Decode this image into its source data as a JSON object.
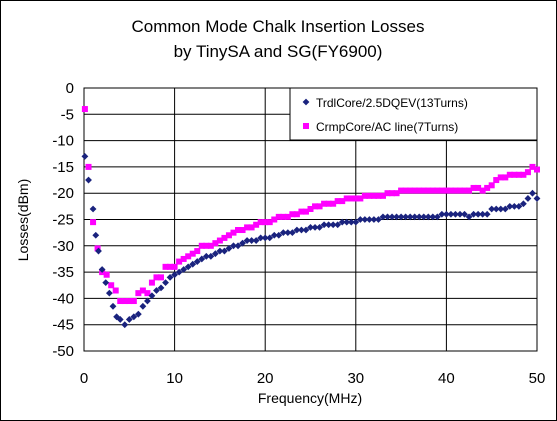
{
  "chart_data": {
    "type": "scatter",
    "title": [
      "Common Mode Chalk Insertion Losses",
      "by TinySA and SG(FY6900)"
    ],
    "xlabel": "Frequency(MHz)",
    "ylabel": "Losses(dBm)",
    "xlim": [
      0,
      50
    ],
    "ylim": [
      -50,
      0
    ],
    "xticks": [
      0,
      10,
      20,
      30,
      40,
      50
    ],
    "yticks": [
      0,
      -5,
      -10,
      -15,
      -20,
      -25,
      -30,
      -35,
      -40,
      -45,
      -50
    ],
    "grid": true,
    "legend_position": "top-right",
    "series": [
      {
        "name": "TrdlCore/2.5DQEV(13Turns)",
        "color": "#1a237e",
        "marker": "diamond",
        "points": [
          [
            0.1,
            -13
          ],
          [
            0.5,
            -17.5
          ],
          [
            1.0,
            -23
          ],
          [
            1.3,
            -28
          ],
          [
            1.6,
            -31
          ],
          [
            2.0,
            -34.5
          ],
          [
            2.4,
            -37
          ],
          [
            2.8,
            -39
          ],
          [
            3.2,
            -41.5
          ],
          [
            3.6,
            -43.5
          ],
          [
            4.0,
            -44
          ],
          [
            4.5,
            -45
          ],
          [
            5.0,
            -44
          ],
          [
            5.5,
            -43.5
          ],
          [
            6.0,
            -43
          ],
          [
            6.5,
            -41.5
          ],
          [
            7.0,
            -40.5
          ],
          [
            7.5,
            -39.5
          ],
          [
            8.0,
            -38.5
          ],
          [
            8.5,
            -38
          ],
          [
            9.0,
            -37
          ],
          [
            9.5,
            -36
          ],
          [
            10.0,
            -35.5
          ],
          [
            10.5,
            -35
          ],
          [
            11.0,
            -34.5
          ],
          [
            11.5,
            -34
          ],
          [
            12.0,
            -33.5
          ],
          [
            12.5,
            -33
          ],
          [
            13.0,
            -32.5
          ],
          [
            13.5,
            -32
          ],
          [
            14.0,
            -32
          ],
          [
            14.5,
            -31.5
          ],
          [
            15.0,
            -31
          ],
          [
            15.5,
            -31
          ],
          [
            16.0,
            -30.5
          ],
          [
            16.5,
            -30
          ],
          [
            17.0,
            -30
          ],
          [
            17.5,
            -29.5
          ],
          [
            18.0,
            -29
          ],
          [
            18.5,
            -29
          ],
          [
            19.0,
            -29
          ],
          [
            19.5,
            -28.5
          ],
          [
            20.0,
            -28.5
          ],
          [
            20.5,
            -28.5
          ],
          [
            21.0,
            -28
          ],
          [
            21.5,
            -28
          ],
          [
            22.0,
            -27.5
          ],
          [
            22.5,
            -27.5
          ],
          [
            23.0,
            -27.5
          ],
          [
            23.5,
            -27
          ],
          [
            24.0,
            -27
          ],
          [
            24.5,
            -27
          ],
          [
            25.0,
            -26.5
          ],
          [
            25.5,
            -26.5
          ],
          [
            26.0,
            -26.5
          ],
          [
            26.5,
            -26
          ],
          [
            27.0,
            -26
          ],
          [
            27.5,
            -26
          ],
          [
            28.0,
            -26
          ],
          [
            28.5,
            -25.5
          ],
          [
            29.0,
            -25.5
          ],
          [
            29.5,
            -25.5
          ],
          [
            30.0,
            -25.5
          ],
          [
            30.5,
            -25
          ],
          [
            31.0,
            -25
          ],
          [
            31.5,
            -25
          ],
          [
            32.0,
            -25
          ],
          [
            32.5,
            -25
          ],
          [
            33.0,
            -24.5
          ],
          [
            33.5,
            -24.5
          ],
          [
            34.0,
            -24.5
          ],
          [
            34.5,
            -24.5
          ],
          [
            35.0,
            -24.5
          ],
          [
            35.5,
            -24.5
          ],
          [
            36.0,
            -24.5
          ],
          [
            36.5,
            -24.5
          ],
          [
            37.0,
            -24.5
          ],
          [
            37.5,
            -24.5
          ],
          [
            38.0,
            -24.5
          ],
          [
            38.5,
            -24.5
          ],
          [
            39.0,
            -24.5
          ],
          [
            39.5,
            -24
          ],
          [
            40.0,
            -24
          ],
          [
            40.5,
            -24
          ],
          [
            41.0,
            -24
          ],
          [
            41.5,
            -24
          ],
          [
            42.0,
            -24
          ],
          [
            42.5,
            -24.5
          ],
          [
            43.0,
            -24
          ],
          [
            43.5,
            -24
          ],
          [
            44.0,
            -24
          ],
          [
            44.5,
            -24
          ],
          [
            45.0,
            -23
          ],
          [
            45.5,
            -23
          ],
          [
            46.0,
            -23
          ],
          [
            46.5,
            -23
          ],
          [
            47.0,
            -22.5
          ],
          [
            47.5,
            -22.5
          ],
          [
            48.0,
            -22.5
          ],
          [
            48.5,
            -22
          ],
          [
            49.0,
            -21
          ],
          [
            49.5,
            -20
          ],
          [
            50.0,
            -21
          ]
        ]
      },
      {
        "name": "CrmpCore/AC line(7Turns)",
        "color": "#ff00ff",
        "marker": "square",
        "points": [
          [
            0.1,
            -4
          ],
          [
            0.5,
            -15
          ],
          [
            1.0,
            -25.5
          ],
          [
            1.5,
            -30.5
          ],
          [
            2.0,
            -35
          ],
          [
            2.5,
            -35.5
          ],
          [
            3.0,
            -37.5
          ],
          [
            3.5,
            -38.5
          ],
          [
            4.0,
            -40.5
          ],
          [
            4.5,
            -40.5
          ],
          [
            5.0,
            -40.5
          ],
          [
            5.5,
            -40.5
          ],
          [
            6.0,
            -39
          ],
          [
            6.5,
            -38.5
          ],
          [
            7.0,
            -39
          ],
          [
            7.5,
            -37
          ],
          [
            8.0,
            -36
          ],
          [
            8.5,
            -36
          ],
          [
            9.0,
            -34
          ],
          [
            9.5,
            -34
          ],
          [
            10.0,
            -34
          ],
          [
            10.5,
            -33
          ],
          [
            11.0,
            -32.5
          ],
          [
            11.5,
            -32
          ],
          [
            12.0,
            -31.5
          ],
          [
            12.5,
            -31
          ],
          [
            13.0,
            -30
          ],
          [
            13.5,
            -30
          ],
          [
            14.0,
            -30
          ],
          [
            14.5,
            -29.5
          ],
          [
            15.0,
            -29
          ],
          [
            15.5,
            -28.5
          ],
          [
            16.0,
            -28
          ],
          [
            16.5,
            -27.5
          ],
          [
            17.0,
            -27
          ],
          [
            17.5,
            -27
          ],
          [
            18.0,
            -26.5
          ],
          [
            18.5,
            -26.5
          ],
          [
            19.0,
            -26
          ],
          [
            19.5,
            -25.5
          ],
          [
            20.0,
            -25.5
          ],
          [
            20.5,
            -25.5
          ],
          [
            21.0,
            -25
          ],
          [
            21.5,
            -24.5
          ],
          [
            22.0,
            -24.5
          ],
          [
            22.5,
            -24.5
          ],
          [
            23.0,
            -24
          ],
          [
            23.5,
            -24
          ],
          [
            24.0,
            -23.5
          ],
          [
            24.5,
            -23.5
          ],
          [
            25.0,
            -23
          ],
          [
            25.5,
            -22.5
          ],
          [
            26.0,
            -22.5
          ],
          [
            26.5,
            -22
          ],
          [
            27.0,
            -22
          ],
          [
            27.5,
            -22
          ],
          [
            28.0,
            -21.5
          ],
          [
            28.5,
            -21.5
          ],
          [
            29.0,
            -21
          ],
          [
            29.5,
            -21
          ],
          [
            30.0,
            -21
          ],
          [
            30.5,
            -21
          ],
          [
            31.0,
            -20.5
          ],
          [
            31.5,
            -20.5
          ],
          [
            32.0,
            -20.5
          ],
          [
            32.5,
            -20.5
          ],
          [
            33.0,
            -20.5
          ],
          [
            33.5,
            -20
          ],
          [
            34.0,
            -20
          ],
          [
            34.5,
            -20
          ],
          [
            35.0,
            -19.5
          ],
          [
            35.5,
            -19.5
          ],
          [
            36.0,
            -19.5
          ],
          [
            36.5,
            -19.5
          ],
          [
            37.0,
            -19.5
          ],
          [
            37.5,
            -19.5
          ],
          [
            38.0,
            -19.5
          ],
          [
            38.5,
            -19.5
          ],
          [
            39.0,
            -19.5
          ],
          [
            39.5,
            -19.5
          ],
          [
            40.0,
            -19.5
          ],
          [
            40.5,
            -19.5
          ],
          [
            41.0,
            -19.5
          ],
          [
            41.5,
            -19.5
          ],
          [
            42.0,
            -19.5
          ],
          [
            42.5,
            -19.5
          ],
          [
            43.0,
            -19
          ],
          [
            43.5,
            -19
          ],
          [
            44.0,
            -19.5
          ],
          [
            44.5,
            -19
          ],
          [
            45.0,
            -18.5
          ],
          [
            45.5,
            -17.5
          ],
          [
            46.0,
            -17
          ],
          [
            46.5,
            -17
          ],
          [
            47.0,
            -16.5
          ],
          [
            47.5,
            -16.5
          ],
          [
            48.0,
            -16.5
          ],
          [
            48.5,
            -16.5
          ],
          [
            49.0,
            -16
          ],
          [
            49.5,
            -15
          ],
          [
            50.0,
            -15.5
          ]
        ]
      }
    ]
  }
}
